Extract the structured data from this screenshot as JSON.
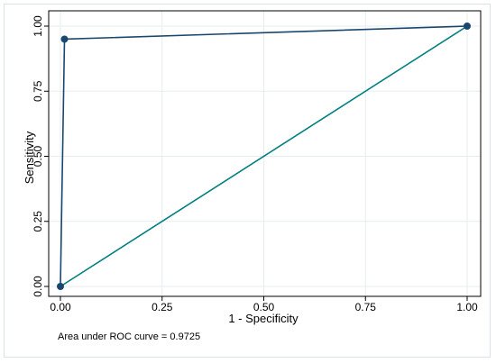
{
  "chart_data": {
    "type": "line",
    "xlabel": "1 - Specificity",
    "ylabel": "Sensitivity",
    "xlim": [
      0,
      1
    ],
    "ylim": [
      0,
      1
    ],
    "x_ticks": [
      "0.00",
      "0.25",
      "0.50",
      "0.75",
      "1.00"
    ],
    "y_ticks": [
      "0.00",
      "0.25",
      "0.50",
      "0.75",
      "1.00"
    ],
    "grid": true,
    "series": [
      {
        "values": [
          {
            "x": 0.0,
            "y": 0.0
          },
          {
            "x": 0.01,
            "y": 0.95
          },
          {
            "x": 1.0,
            "y": 1.0
          }
        ],
        "color": "#1a476f",
        "markers": true
      },
      {
        "values": [
          {
            "x": 0.0,
            "y": 0.0
          },
          {
            "x": 1.0,
            "y": 1.0
          }
        ],
        "color": "#007f7f",
        "markers": false
      }
    ],
    "annotation": "Area under ROC curve = 0.9725"
  }
}
